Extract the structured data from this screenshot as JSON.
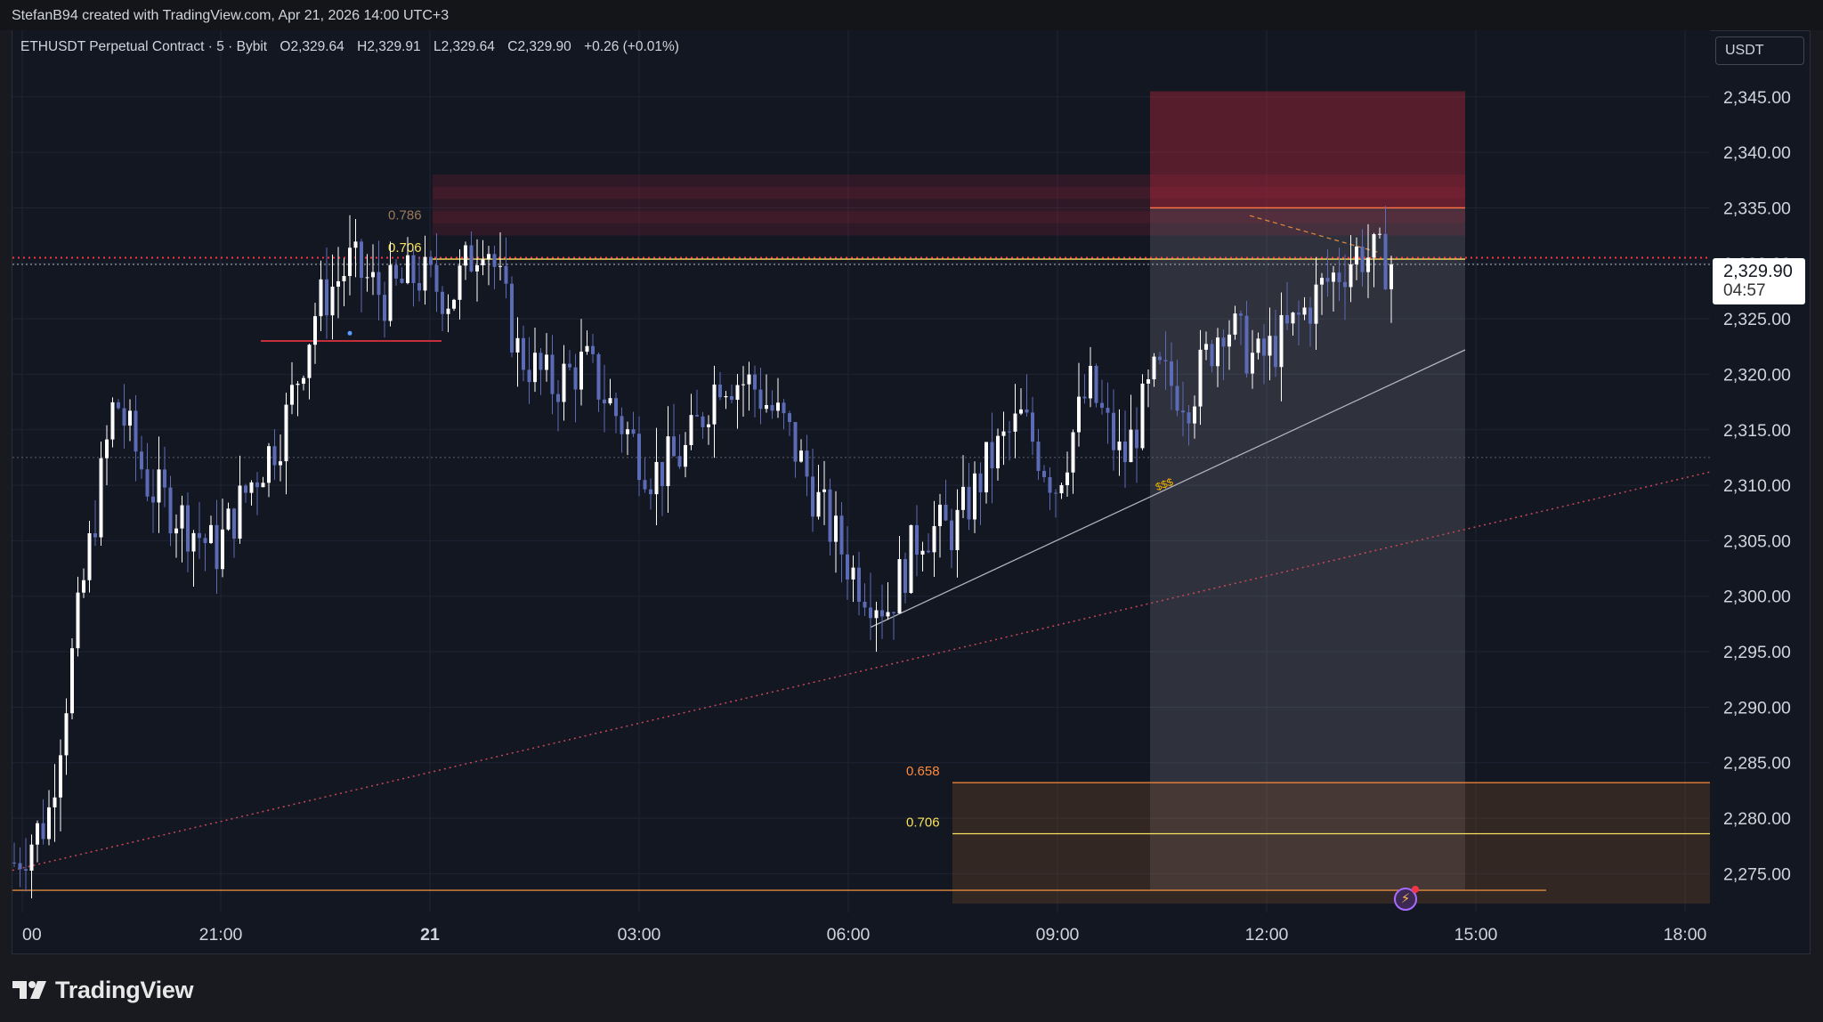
{
  "header": {
    "credit": "StefanB94 created with TradingView.com, Apr 21, 2026 14:00 UTC+3"
  },
  "legend": {
    "symbol": "ETHUSDT Perpetual Contract · 5 · Bybit",
    "open": "O2,329.64",
    "high": "H2,329.91",
    "low": "L2,329.64",
    "close": "C2,329.90",
    "change": "+0.26 (+0.01%)"
  },
  "currency_button": "USDT",
  "price_label": {
    "price": "2,329.90",
    "countdown": "04:57"
  },
  "brand": {
    "name": "TradingView"
  },
  "icons": {
    "tv": "tradingview-logo-icon",
    "alert": "lightning-alert-icon"
  },
  "colors": {
    "background": "#131722",
    "grid": "#1f2433",
    "candle_up": "#ffffff",
    "candle_down": "#5b6bb5",
    "red_zone": "#b2283c",
    "orange_zone": "#7a4a24",
    "fib_yellow": "#f7e15b",
    "fib_orange": "#ff8a3d"
  },
  "chart_data": {
    "type": "candlestick",
    "title": "",
    "xlabel": "",
    "ylabel": "",
    "ylim": [
      2271.5,
      2351
    ],
    "x_ticks": [
      "00",
      "21:00",
      "21",
      "03:00",
      "06:00",
      "09:00",
      "12:00",
      "15:00",
      "18:00"
    ],
    "y_ticks": [
      "2,345.00",
      "2,340.00",
      "2,335.00",
      "2,330.00",
      "2,325.00",
      "2,320.00",
      "2,315.00",
      "2,310.00",
      "2,305.00",
      "2,300.00",
      "2,295.00",
      "2,290.00",
      "2,285.00",
      "2,280.00",
      "2,275.00"
    ],
    "y_tick_values": [
      2345,
      2340,
      2335,
      2330,
      2325,
      2320,
      2315,
      2310,
      2305,
      2300,
      2295,
      2290,
      2285,
      2280,
      2275
    ],
    "anchors": [
      {
        "hours_label": "00",
        "price": 2276
      },
      {
        "hours_label": "",
        "price": 2280
      },
      {
        "hours_label": "",
        "price": 2300
      },
      {
        "hours_label": "",
        "price": 2318
      },
      {
        "hours_label": "",
        "price": 2310
      },
      {
        "hours_label": "",
        "price": 2307
      },
      {
        "hours_label": "",
        "price": 2304
      },
      {
        "hours_label": "",
        "price": 2310
      },
      {
        "hours_label": "",
        "price": 2315
      },
      {
        "hours_label": "21:00",
        "price": 2326
      },
      {
        "hours_label": "",
        "price": 2330
      },
      {
        "hours_label": "",
        "price": 2327
      },
      {
        "hours_label": "",
        "price": 2329
      },
      {
        "hours_label": "",
        "price": 2327
      },
      {
        "hours_label": "",
        "price": 2333
      },
      {
        "hours_label": "21",
        "price": 2322
      },
      {
        "hours_label": "",
        "price": 2319
      },
      {
        "hours_label": "",
        "price": 2321
      },
      {
        "hours_label": "",
        "price": 2316
      },
      {
        "hours_label": "",
        "price": 2311
      },
      {
        "hours_label": "03:00",
        "price": 2313
      },
      {
        "hours_label": "",
        "price": 2320
      },
      {
        "hours_label": "",
        "price": 2319
      },
      {
        "hours_label": "",
        "price": 2315
      },
      {
        "hours_label": "",
        "price": 2308
      },
      {
        "hours_label": "",
        "price": 2302
      },
      {
        "hours_label": "06:00",
        "price": 2299
      },
      {
        "hours_label": "",
        "price": 2306
      },
      {
        "hours_label": "",
        "price": 2306
      },
      {
        "hours_label": "",
        "price": 2312
      },
      {
        "hours_label": "",
        "price": 2316
      },
      {
        "hours_label": "09:00",
        "price": 2310
      },
      {
        "hours_label": "",
        "price": 2319
      },
      {
        "hours_label": "",
        "price": 2312
      },
      {
        "hours_label": "",
        "price": 2320
      },
      {
        "hours_label": "",
        "price": 2318
      },
      {
        "hours_label": "",
        "price": 2325
      },
      {
        "hours_label": "12:00",
        "price": 2321
      },
      {
        "hours_label": "",
        "price": 2324
      },
      {
        "hours_label": "",
        "price": 2328
      },
      {
        "hours_label": "",
        "price": 2331
      },
      {
        "hours_label": "",
        "price": 2329.9
      }
    ],
    "current_price": 2329.9,
    "countdown": "04:57",
    "zones": [
      {
        "name": "red-zone-upper",
        "from_price": 2345.5,
        "to_price": 2335
      },
      {
        "name": "red-zone-left",
        "from_price": 2338,
        "to_price": 2332.5
      },
      {
        "name": "orange-zone-lower",
        "from_price": 2283.2,
        "to_price": 2272.3
      },
      {
        "name": "grey-projection-box",
        "from_price": 2335,
        "to_price": 2273.5
      }
    ],
    "levels": [
      {
        "label": "0.786",
        "price": 2334.6
      },
      {
        "label": "0.706",
        "price": 2331.5
      },
      {
        "label": "0.658",
        "price": 2283.2
      },
      {
        "label": "0.706",
        "price": 2278.6
      }
    ],
    "annotations": [
      {
        "text": "$$$",
        "price": 2309.5
      }
    ]
  }
}
